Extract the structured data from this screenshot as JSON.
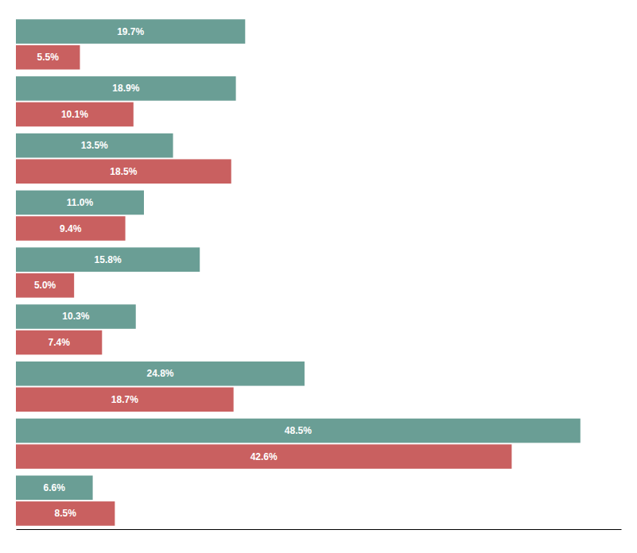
{
  "chart_data": {
    "type": "bar",
    "orientation": "horizontal",
    "categories": [
      null,
      null,
      null,
      null,
      null,
      null,
      null,
      null,
      null
    ],
    "series": [
      {
        "color": "#6a9e95",
        "values": [
          19.7,
          18.9,
          13.5,
          11.0,
          15.8,
          10.3,
          24.8,
          48.5,
          6.6
        ],
        "value_labels": [
          "19.7%",
          "18.9%",
          "13.5%",
          "11.0%",
          "15.8%",
          "10.3%",
          "24.8%",
          "48.5%",
          "6.6%"
        ]
      },
      {
        "color": "#c96060",
        "values": [
          5.5,
          10.1,
          18.5,
          9.4,
          5.0,
          7.4,
          18.7,
          42.6,
          8.5
        ],
        "value_labels": [
          "5.5%",
          "10.1%",
          "18.5%",
          "9.4%",
          "5.0%",
          "7.4%",
          "18.7%",
          "42.6%",
          "8.5%"
        ]
      }
    ],
    "xlim": [
      0,
      52
    ],
    "data_labels": true,
    "tick_labels": false,
    "grid": false
  }
}
